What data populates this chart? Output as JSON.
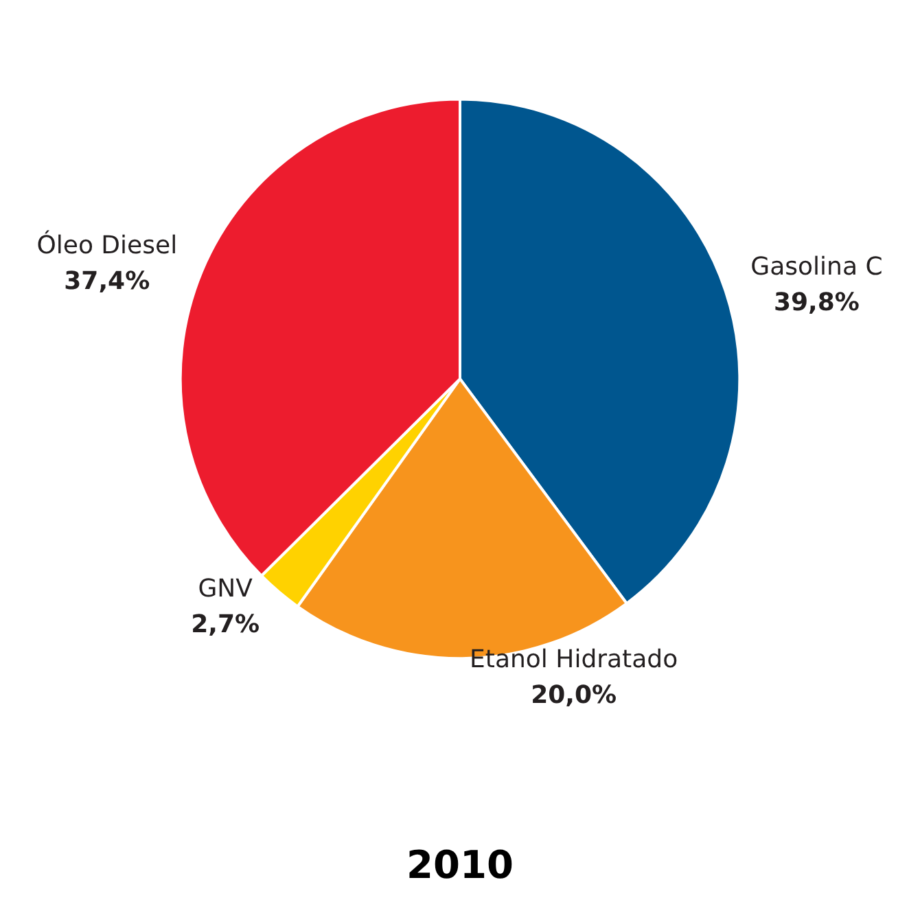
{
  "chart_data": {
    "type": "pie",
    "title": "2010",
    "categories": [
      "Gasolina C",
      "Etanol Hidratado",
      "GNV",
      "Óleo Diesel"
    ],
    "values": [
      39.8,
      20.0,
      2.7,
      37.4
    ],
    "colors": [
      "#00568f",
      "#f7941d",
      "#ffd200",
      "#ed1c2e"
    ],
    "value_labels": [
      "39,8%",
      "20,0%",
      "2,7%",
      "37,4%"
    ],
    "legend": false
  }
}
